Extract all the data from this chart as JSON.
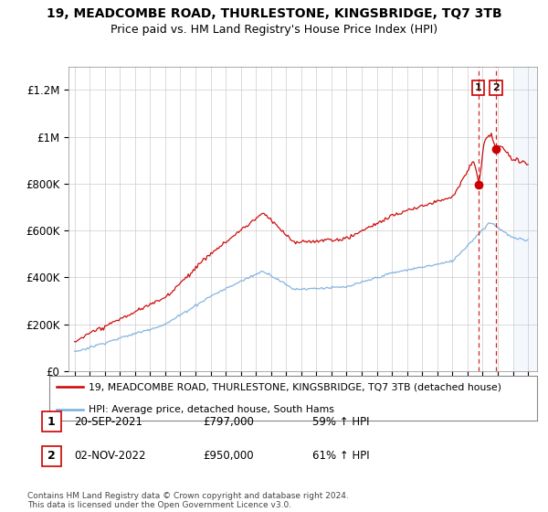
{
  "title": "19, MEADCOMBE ROAD, THURLESTONE, KINGSBRIDGE, TQ7 3TB",
  "subtitle": "Price paid vs. HM Land Registry's House Price Index (HPI)",
  "legend_line1": "19, MEADCOMBE ROAD, THURLESTONE, KINGSBRIDGE, TQ7 3TB (detached house)",
  "legend_line2": "HPI: Average price, detached house, South Hams",
  "transaction1_date": "20-SEP-2021",
  "transaction1_price": "£797,000",
  "transaction1_hpi": "59% ↑ HPI",
  "transaction2_date": "02-NOV-2022",
  "transaction2_price": "£950,000",
  "transaction2_hpi": "61% ↑ HPI",
  "footer": "Contains HM Land Registry data © Crown copyright and database right 2024.\nThis data is licensed under the Open Government Licence v3.0.",
  "property_color": "#cc0000",
  "hpi_color": "#7aaddd",
  "vline_color": "#cc0000",
  "ylim": [
    0,
    1300000
  ],
  "yticks": [
    0,
    200000,
    400000,
    600000,
    800000,
    1000000,
    1200000
  ],
  "ytick_labels": [
    "£0",
    "£200K",
    "£400K",
    "£600K",
    "£800K",
    "£1M",
    "£1.2M"
  ]
}
